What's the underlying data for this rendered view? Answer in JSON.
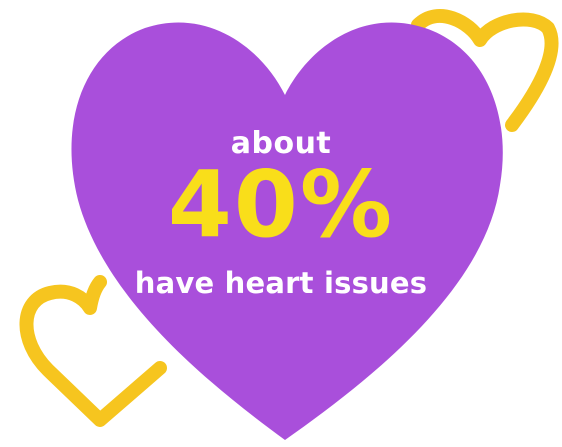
{
  "graphic": {
    "line1": "about",
    "big_value": "40%",
    "line2": "have heart issues"
  },
  "colors": {
    "background": "#ffffff",
    "main_heart": "#a94fdb",
    "outline_hearts": "#f6c51f",
    "small_text": "#ffffff",
    "big_text": "#f9de1a"
  },
  "icons": [
    "heart-icon",
    "heart-outline-icon"
  ]
}
